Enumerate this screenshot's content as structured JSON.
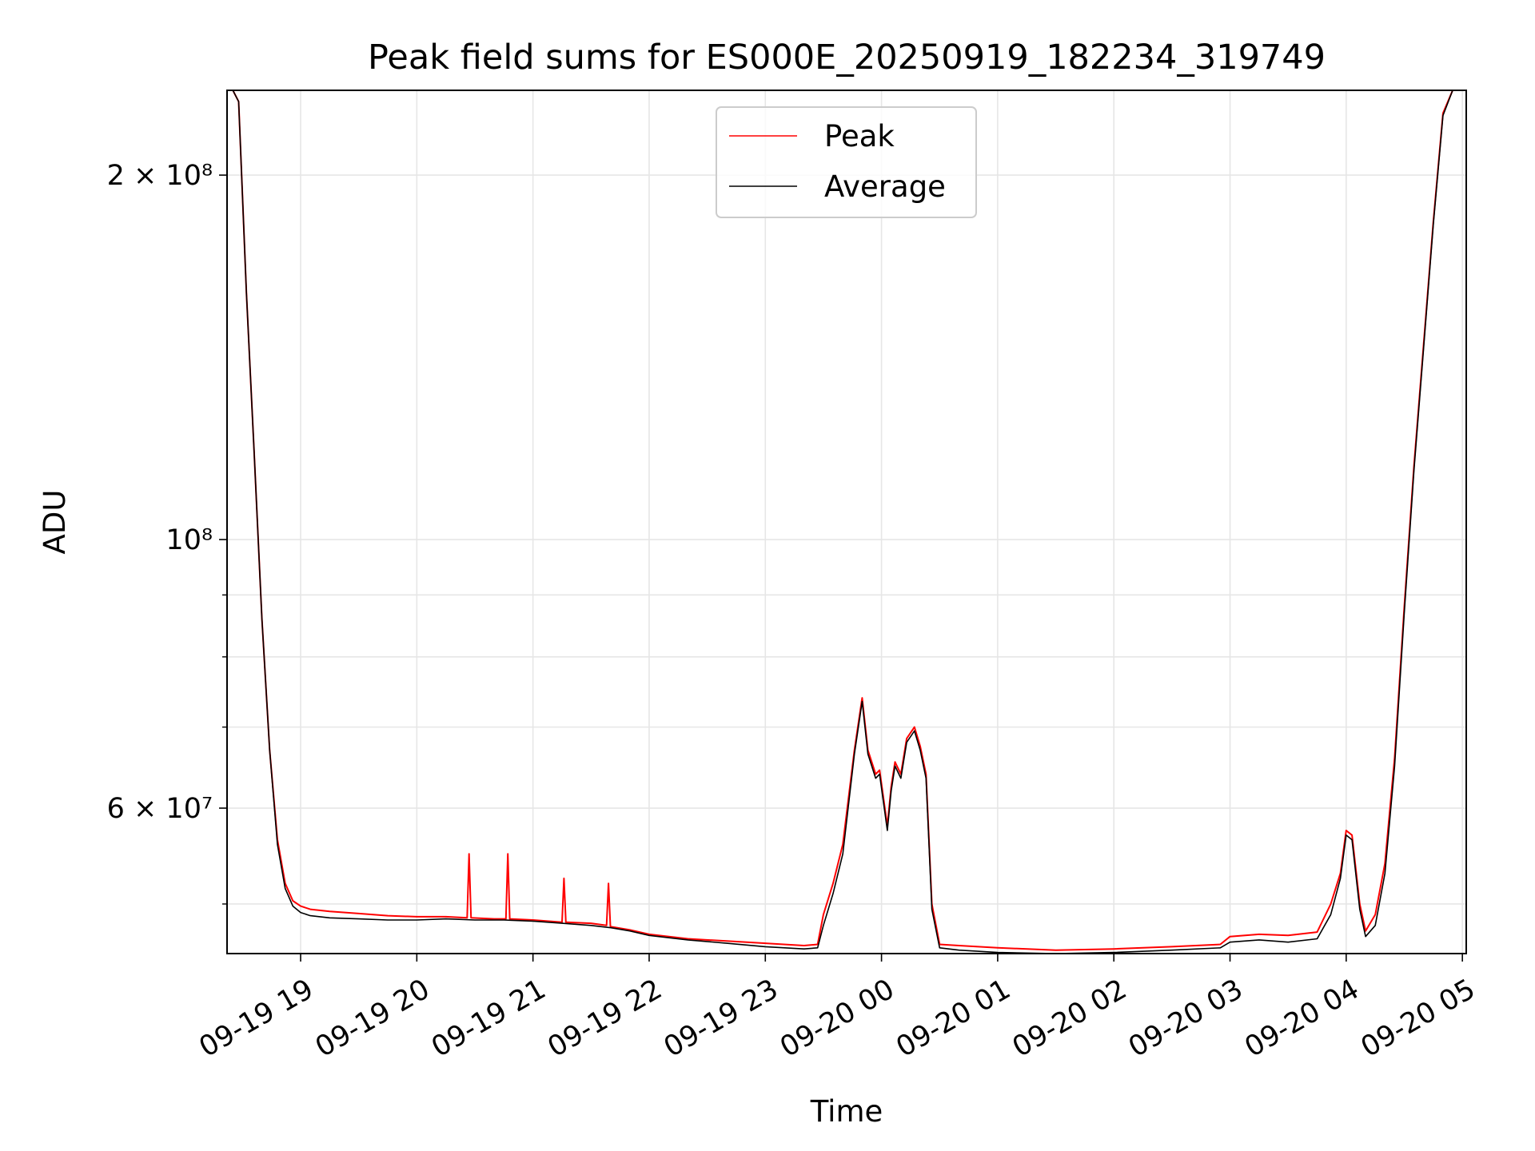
{
  "chart_data": {
    "type": "line",
    "title": "Peak field sums for ES000E_20250919_182234_319749",
    "xlabel": "Time",
    "ylabel": "ADU",
    "yscale": "log",
    "grid": true,
    "legend_position": "upper center",
    "xlim": [
      "2025-09-19 18:22",
      "2025-09-20 05:02"
    ],
    "ylim": [
      45500000,
      235000000
    ],
    "x_ticks": [
      "09-19 19",
      "09-19 20",
      "09-19 21",
      "09-19 22",
      "09-19 23",
      "09-20 00",
      "09-20 01",
      "09-20 02",
      "09-20 03",
      "09-20 04",
      "09-20 05"
    ],
    "y_ticks": [
      {
        "value": 200000000,
        "label": "2 × 10⁸"
      },
      {
        "value": 100000000,
        "label": "10⁸"
      },
      {
        "value": 60000000,
        "label": "6 × 10⁷"
      }
    ],
    "y_minor_ticks": [
      50000000,
      70000000,
      80000000,
      90000000
    ],
    "series": [
      {
        "name": "Peak",
        "color": "#ff0000",
        "x": [
          "2025-09-19 18:22",
          "2025-09-19 18:25",
          "2025-09-19 18:28",
          "2025-09-19 18:32",
          "2025-09-19 18:36",
          "2025-09-19 18:40",
          "2025-09-19 18:44",
          "2025-09-19 18:48",
          "2025-09-19 18:52",
          "2025-09-19 18:56",
          "2025-09-19 19:00",
          "2025-09-19 19:05",
          "2025-09-19 19:15",
          "2025-09-19 19:30",
          "2025-09-19 19:45",
          "2025-09-19 20:00",
          "2025-09-19 20:15",
          "2025-09-19 20:26",
          "2025-09-19 20:27",
          "2025-09-19 20:28",
          "2025-09-19 20:40",
          "2025-09-19 20:46",
          "2025-09-19 20:47",
          "2025-09-19 20:48",
          "2025-09-19 21:00",
          "2025-09-19 21:15",
          "2025-09-19 21:16",
          "2025-09-19 21:17",
          "2025-09-19 21:30",
          "2025-09-19 21:38",
          "2025-09-19 21:39",
          "2025-09-19 21:40",
          "2025-09-19 21:50",
          "2025-09-19 22:00",
          "2025-09-19 22:20",
          "2025-09-19 22:40",
          "2025-09-19 23:00",
          "2025-09-19 23:20",
          "2025-09-19 23:27",
          "2025-09-19 23:30",
          "2025-09-19 23:35",
          "2025-09-19 23:40",
          "2025-09-19 23:46",
          "2025-09-19 23:50",
          "2025-09-19 23:53",
          "2025-09-19 23:57",
          "2025-09-19 23:59",
          "2025-09-20 00:03",
          "2025-09-20 00:05",
          "2025-09-20 00:07",
          "2025-09-20 00:10",
          "2025-09-20 00:13",
          "2025-09-20 00:17",
          "2025-09-20 00:20",
          "2025-09-20 00:23",
          "2025-09-20 00:26",
          "2025-09-20 00:30",
          "2025-09-20 00:40",
          "2025-09-20 01:00",
          "2025-09-20 01:30",
          "2025-09-20 02:00",
          "2025-09-20 02:30",
          "2025-09-20 02:55",
          "2025-09-20 03:00",
          "2025-09-20 03:15",
          "2025-09-20 03:30",
          "2025-09-20 03:45",
          "2025-09-20 03:52",
          "2025-09-20 03:57",
          "2025-09-20 04:00",
          "2025-09-20 04:03",
          "2025-09-20 04:07",
          "2025-09-20 04:10",
          "2025-09-20 04:15",
          "2025-09-20 04:20",
          "2025-09-20 04:25",
          "2025-09-20 04:30",
          "2025-09-20 04:35",
          "2025-09-20 04:40",
          "2025-09-20 04:45",
          "2025-09-20 04:50",
          "2025-09-20 04:55",
          "2025-09-20 05:02"
        ],
        "y": [
          235000000,
          235000000,
          230000000,
          160000000,
          118000000,
          86000000,
          67000000,
          56500000,
          52000000,
          50300000,
          49800000,
          49500000,
          49300000,
          49100000,
          48900000,
          48800000,
          48800000,
          48700000,
          55000000,
          48700000,
          48600000,
          48600000,
          55000000,
          48600000,
          48500000,
          48300000,
          52500000,
          48300000,
          48200000,
          48000000,
          52000000,
          47900000,
          47600000,
          47200000,
          46800000,
          46600000,
          46400000,
          46200000,
          46300000,
          49000000,
          52000000,
          56000000,
          67000000,
          74000000,
          67000000,
          64000000,
          64500000,
          58000000,
          62500000,
          65500000,
          64000000,
          68500000,
          70000000,
          67500000,
          64000000,
          50000000,
          46300000,
          46200000,
          46000000,
          45800000,
          45900000,
          46100000,
          46300000,
          47000000,
          47200000,
          47100000,
          47400000,
          50000000,
          53000000,
          57500000,
          57000000,
          50000000,
          47500000,
          49000000,
          54000000,
          66000000,
          88000000,
          115000000,
          145000000,
          183000000,
          225000000,
          235000000,
          235000000
        ]
      },
      {
        "name": "Average",
        "color": "#000000",
        "x": [
          "2025-09-19 18:22",
          "2025-09-19 18:25",
          "2025-09-19 18:28",
          "2025-09-19 18:32",
          "2025-09-19 18:36",
          "2025-09-19 18:40",
          "2025-09-19 18:44",
          "2025-09-19 18:48",
          "2025-09-19 18:52",
          "2025-09-19 18:56",
          "2025-09-19 19:00",
          "2025-09-19 19:05",
          "2025-09-19 19:15",
          "2025-09-19 19:30",
          "2025-09-19 19:45",
          "2025-09-19 20:00",
          "2025-09-19 20:15",
          "2025-09-19 20:30",
          "2025-09-19 20:45",
          "2025-09-19 21:00",
          "2025-09-19 21:15",
          "2025-09-19 21:30",
          "2025-09-19 21:40",
          "2025-09-19 21:50",
          "2025-09-19 22:00",
          "2025-09-19 22:20",
          "2025-09-19 22:40",
          "2025-09-19 23:00",
          "2025-09-19 23:20",
          "2025-09-19 23:27",
          "2025-09-19 23:30",
          "2025-09-19 23:35",
          "2025-09-19 23:40",
          "2025-09-19 23:46",
          "2025-09-19 23:50",
          "2025-09-19 23:53",
          "2025-09-19 23:57",
          "2025-09-19 23:59",
          "2025-09-20 00:03",
          "2025-09-20 00:05",
          "2025-09-20 00:07",
          "2025-09-20 00:10",
          "2025-09-20 00:13",
          "2025-09-20 00:17",
          "2025-09-20 00:20",
          "2025-09-20 00:23",
          "2025-09-20 00:26",
          "2025-09-20 00:30",
          "2025-09-20 00:40",
          "2025-09-20 01:00",
          "2025-09-20 01:30",
          "2025-09-20 02:00",
          "2025-09-20 02:30",
          "2025-09-20 02:55",
          "2025-09-20 03:00",
          "2025-09-20 03:15",
          "2025-09-20 03:30",
          "2025-09-20 03:45",
          "2025-09-20 03:52",
          "2025-09-20 03:57",
          "2025-09-20 04:00",
          "2025-09-20 04:03",
          "2025-09-20 04:07",
          "2025-09-20 04:10",
          "2025-09-20 04:15",
          "2025-09-20 04:20",
          "2025-09-20 04:25",
          "2025-09-20 04:30",
          "2025-09-20 04:35",
          "2025-09-20 04:40",
          "2025-09-20 04:45",
          "2025-09-20 04:50",
          "2025-09-20 04:55",
          "2025-09-20 05:02"
        ],
        "y": [
          235000000,
          235000000,
          230000000,
          160000000,
          118000000,
          86000000,
          67000000,
          56000000,
          51500000,
          49800000,
          49200000,
          48900000,
          48700000,
          48600000,
          48500000,
          48500000,
          48600000,
          48500000,
          48500000,
          48400000,
          48200000,
          48000000,
          47800000,
          47500000,
          47100000,
          46700000,
          46400000,
          46100000,
          45900000,
          46000000,
          48000000,
          51000000,
          55000000,
          66500000,
          73500000,
          66500000,
          63500000,
          64000000,
          57500000,
          62000000,
          65000000,
          63500000,
          68000000,
          69500000,
          67000000,
          63500000,
          49500000,
          46000000,
          45800000,
          45600000,
          45500000,
          45600000,
          45800000,
          46000000,
          46500000,
          46700000,
          46500000,
          46800000,
          49000000,
          52500000,
          57000000,
          56500000,
          49500000,
          47000000,
          48000000,
          53000000,
          65000000,
          87000000,
          114000000,
          144000000,
          182000000,
          224000000,
          235000000,
          235000000
        ]
      }
    ]
  }
}
